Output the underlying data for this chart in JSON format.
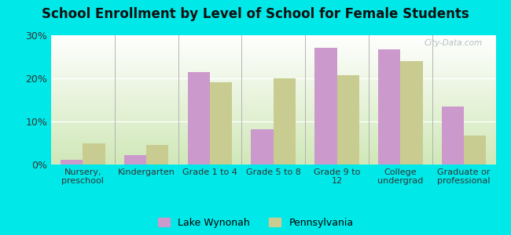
{
  "title": "School Enrollment by Level of School for Female Students",
  "categories": [
    "Nursery,\npreschool",
    "Kindergarten",
    "Grade 1 to 4",
    "Grade 5 to 8",
    "Grade 9 to\n12",
    "College\nundergrad",
    "Graduate or\nprofessional"
  ],
  "lake_wynonah": [
    1.1,
    2.1,
    21.5,
    8.1,
    27.0,
    26.8,
    13.4
  ],
  "pennsylvania": [
    5.0,
    4.5,
    19.0,
    20.0,
    20.7,
    24.0,
    6.8
  ],
  "color_lake": "#cc99cc",
  "color_pa": "#c8cc90",
  "background_outer": "#00e8e8",
  "gradient_top": "#ffffff",
  "gradient_bottom": "#d0e8b8",
  "ylim": [
    0,
    30
  ],
  "yticks": [
    0,
    10,
    20,
    30
  ],
  "ytick_labels": [
    "0%",
    "10%",
    "20%",
    "30%"
  ],
  "watermark": "City-Data.com",
  "legend_labels": [
    "Lake Wynonah",
    "Pennsylvania"
  ],
  "bar_width": 0.35
}
